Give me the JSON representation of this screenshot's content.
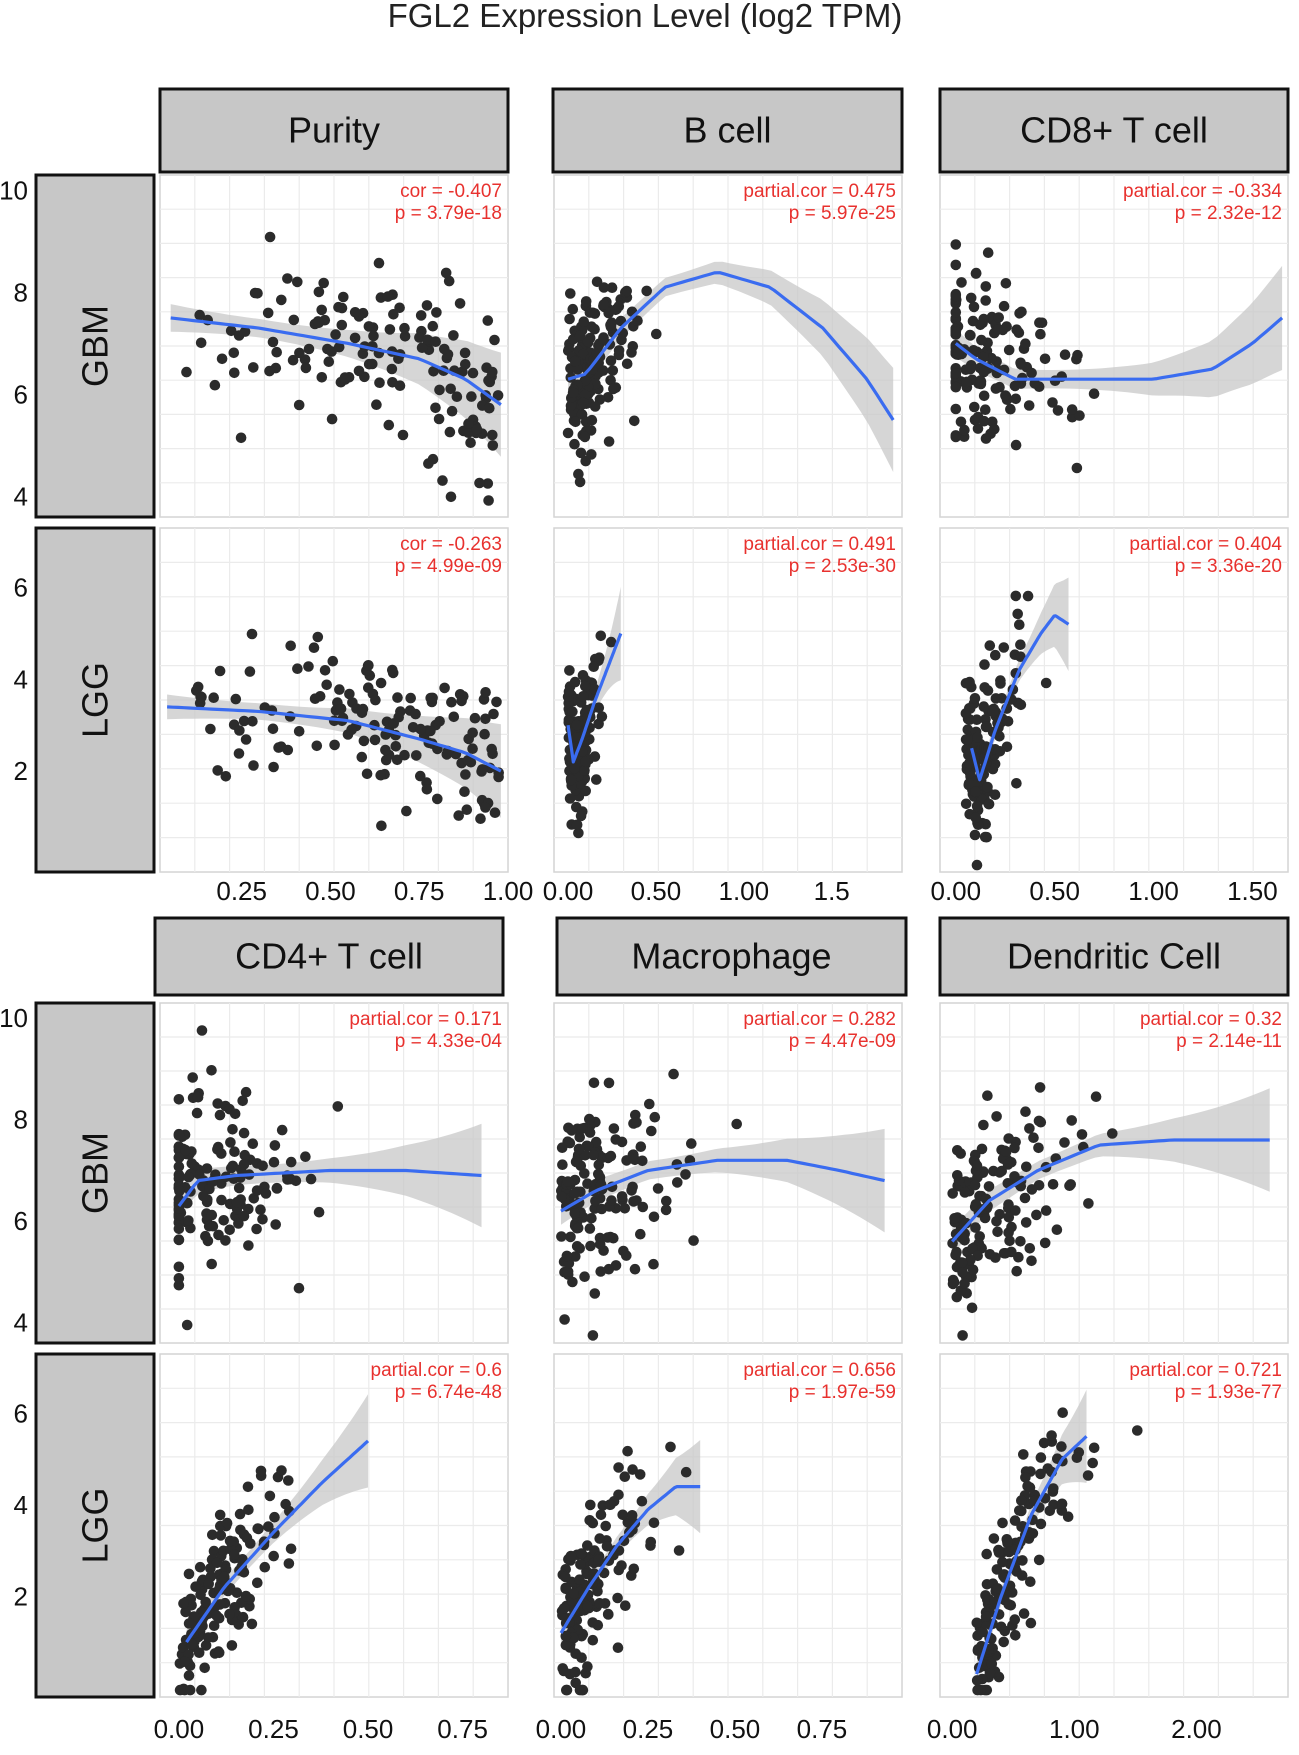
{
  "chart_data": {
    "type": "scatter",
    "title": "FGL2 Expression Level (log2 TPM)",
    "colors": {
      "points": "#2b2b2b",
      "fit": "#3a6cf0",
      "band": "#c8c8c8",
      "annotation": "#e8312e",
      "strip": "#c7c7c7",
      "grid": "#ebebeb"
    },
    "blocks": [
      {
        "columns": [
          "Purity",
          "B cell",
          "CD8+ T cell"
        ],
        "x_ticks": [
          {
            "values": [
              0.25,
              0.5,
              0.75,
              1.0
            ],
            "labels": [
              "0.25",
              "0.50",
              "0.75",
              "1.00"
            ],
            "xlim": [
              0.02,
              1.0
            ]
          },
          {
            "values": [
              0.0,
              0.5,
              1.0,
              1.5
            ],
            "labels": [
              "0.00",
              "0.50",
              "1.00",
              "1.5"
            ],
            "xlim": [
              -0.08,
              1.9
            ]
          },
          {
            "values": [
              0.0,
              0.5,
              1.0,
              1.5
            ],
            "labels": [
              "0.00",
              "0.50",
              "1.00",
              "1.50"
            ],
            "xlim": [
              -0.08,
              1.68
            ]
          }
        ],
        "rows": [
          {
            "name": "GBM",
            "y_ticks": [
              4,
              6,
              8,
              10
            ],
            "ylim": [
              3.6,
              10.3
            ],
            "panels": [
              {
                "cor_label": "cor = -0.407",
                "p_label": "p = 3.79e-18",
                "smooth": [
                  [
                    0.05,
                    7.5
                  ],
                  [
                    0.3,
                    7.3
                  ],
                  [
                    0.55,
                    7.0
                  ],
                  [
                    0.75,
                    6.7
                  ],
                  [
                    0.88,
                    6.3
                  ],
                  [
                    0.98,
                    5.8
                  ]
                ]
              },
              {
                "cor_label": "partial.cor = 0.475",
                "p_label": "p = 5.97e-25",
                "smooth": [
                  [
                    0.0,
                    6.3
                  ],
                  [
                    0.1,
                    6.4
                  ],
                  [
                    0.3,
                    7.3
                  ],
                  [
                    0.55,
                    8.1
                  ],
                  [
                    0.85,
                    8.4
                  ],
                  [
                    1.15,
                    8.1
                  ],
                  [
                    1.45,
                    7.3
                  ],
                  [
                    1.7,
                    6.3
                  ],
                  [
                    1.85,
                    5.5
                  ]
                ]
              },
              {
                "cor_label": "partial.cor = -0.334",
                "p_label": "p = 2.32e-12",
                "smooth": [
                  [
                    0.0,
                    7.0
                  ],
                  [
                    0.1,
                    6.7
                  ],
                  [
                    0.3,
                    6.3
                  ],
                  [
                    0.6,
                    6.3
                  ],
                  [
                    1.0,
                    6.3
                  ],
                  [
                    1.3,
                    6.5
                  ],
                  [
                    1.5,
                    7.0
                  ],
                  [
                    1.65,
                    7.5
                  ]
                ]
              }
            ]
          },
          {
            "name": "LGG",
            "y_ticks": [
              2,
              4,
              6
            ],
            "ylim": [
              -0.2,
              7.3
            ],
            "panels": [
              {
                "cor_label": "cor = -0.263",
                "p_label": "p = 4.99e-09",
                "smooth": [
                  [
                    0.04,
                    3.4
                  ],
                  [
                    0.3,
                    3.3
                  ],
                  [
                    0.55,
                    3.1
                  ],
                  [
                    0.75,
                    2.7
                  ],
                  [
                    0.88,
                    2.4
                  ],
                  [
                    0.98,
                    2.0
                  ]
                ]
              },
              {
                "cor_label": "partial.cor = 0.491",
                "p_label": "p = 2.53e-30",
                "smooth": [
                  [
                    0.0,
                    3.0
                  ],
                  [
                    0.03,
                    2.2
                  ],
                  [
                    0.08,
                    2.7
                  ],
                  [
                    0.15,
                    3.5
                  ],
                  [
                    0.22,
                    4.2
                  ],
                  [
                    0.3,
                    5.0
                  ]
                ]
              },
              {
                "cor_label": "partial.cor = 0.404",
                "p_label": "p = 3.36e-20",
                "smooth": [
                  [
                    0.08,
                    2.5
                  ],
                  [
                    0.12,
                    1.8
                  ],
                  [
                    0.2,
                    2.9
                  ],
                  [
                    0.32,
                    4.2
                  ],
                  [
                    0.43,
                    5.0
                  ],
                  [
                    0.5,
                    5.4
                  ],
                  [
                    0.57,
                    5.2
                  ]
                ]
              }
            ]
          }
        ]
      },
      {
        "columns": [
          "CD4+ T cell",
          "Macrophage",
          "Dendritic Cell"
        ],
        "x_ticks": [
          {
            "values": [
              0.0,
              0.25,
              0.5,
              0.75
            ],
            "labels": [
              "0.00",
              "0.25",
              "0.50",
              "0.75"
            ],
            "xlim": [
              -0.05,
              0.87
            ]
          },
          {
            "values": [
              0.0,
              0.25,
              0.5,
              0.75
            ],
            "labels": [
              "0.00",
              "0.25",
              "0.50",
              "0.75"
            ],
            "xlim": [
              -0.02,
              0.98
            ]
          },
          {
            "values": [
              0.0,
              1.0,
              2.0
            ],
            "labels": [
              "0.00",
              "1.00",
              "2.00"
            ],
            "xlim": [
              -0.1,
              2.75
            ]
          }
        ],
        "rows": [
          {
            "name": "GBM",
            "y_ticks": [
              4,
              6,
              8,
              10
            ],
            "ylim": [
              3.6,
              10.3
            ],
            "panels": [
              {
                "cor_label": "partial.cor = 0.171",
                "p_label": "p = 4.33e-04",
                "smooth": [
                  [
                    0.0,
                    6.3
                  ],
                  [
                    0.05,
                    6.8
                  ],
                  [
                    0.15,
                    6.9
                  ],
                  [
                    0.4,
                    7.0
                  ],
                  [
                    0.6,
                    7.0
                  ],
                  [
                    0.8,
                    6.9
                  ]
                ]
              },
              {
                "cor_label": "partial.cor = 0.282",
                "p_label": "p = 4.47e-09",
                "smooth": [
                  [
                    0.0,
                    6.2
                  ],
                  [
                    0.1,
                    6.6
                  ],
                  [
                    0.25,
                    7.0
                  ],
                  [
                    0.45,
                    7.2
                  ],
                  [
                    0.65,
                    7.2
                  ],
                  [
                    0.8,
                    7.0
                  ],
                  [
                    0.93,
                    6.8
                  ]
                ]
              },
              {
                "cor_label": "partial.cor = 0.32",
                "p_label": "p = 2.14e-11",
                "smooth": [
                  [
                    0.0,
                    5.6
                  ],
                  [
                    0.3,
                    6.4
                  ],
                  [
                    0.7,
                    7.0
                  ],
                  [
                    1.2,
                    7.5
                  ],
                  [
                    1.8,
                    7.6
                  ],
                  [
                    2.6,
                    7.6
                  ]
                ]
              }
            ]
          },
          {
            "name": "LGG",
            "y_ticks": [
              2,
              4,
              6
            ],
            "ylim": [
              -0.2,
              7.3
            ],
            "panels": [
              {
                "cor_label": "partial.cor = 0.6",
                "p_label": "p = 6.74e-48",
                "smooth": [
                  [
                    0.02,
                    1.0
                  ],
                  [
                    0.12,
                    2.2
                  ],
                  [
                    0.25,
                    3.4
                  ],
                  [
                    0.38,
                    4.5
                  ],
                  [
                    0.5,
                    5.4
                  ]
                ]
              },
              {
                "cor_label": "partial.cor = 0.656",
                "p_label": "p = 1.97e-59",
                "smooth": [
                  [
                    0.0,
                    1.2
                  ],
                  [
                    0.08,
                    2.2
                  ],
                  [
                    0.16,
                    3.1
                  ],
                  [
                    0.25,
                    3.9
                  ],
                  [
                    0.33,
                    4.4
                  ],
                  [
                    0.4,
                    4.4
                  ]
                ]
              },
              {
                "cor_label": "partial.cor = 0.721",
                "p_label": "p = 1.93e-77",
                "smooth": [
                  [
                    0.2,
                    0.3
                  ],
                  [
                    0.4,
                    2.0
                  ],
                  [
                    0.65,
                    3.8
                  ],
                  [
                    0.9,
                    5.0
                  ],
                  [
                    1.1,
                    5.5
                  ]
                ]
              }
            ]
          }
        ]
      }
    ]
  }
}
